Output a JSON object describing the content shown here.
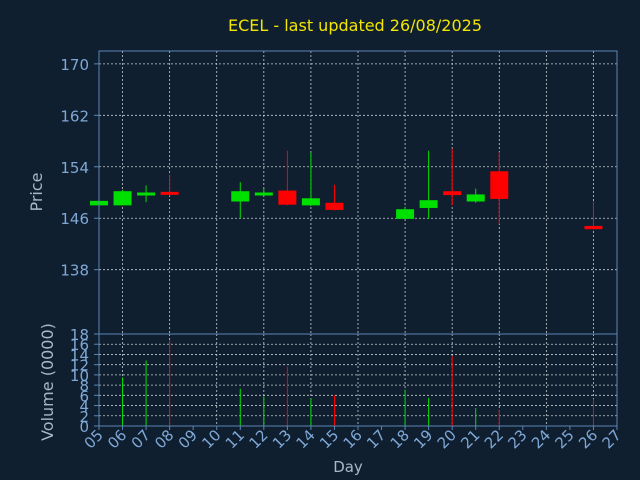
{
  "colors": {
    "background": "#0f1f30",
    "axis": "#5c86b4",
    "grid": "#c8ccd0",
    "tick_text": "#7fa8d6",
    "title": "#f2e600",
    "label": "#aab8c6",
    "up": "#00e000",
    "down": "#ff0000"
  },
  "chart_data": [
    {
      "type": "candlestick",
      "title": "ECEL - last updated 26/08/2025",
      "ylabel": "Price",
      "ylim": [
        128,
        172
      ],
      "yticks": [
        "138",
        "146",
        "154",
        "162",
        "170"
      ],
      "grid": true,
      "days": [
        "05",
        "06",
        "07",
        "08",
        "09",
        "10",
        "11",
        "12",
        "13",
        "14",
        "15",
        "16",
        "17",
        "18",
        "19",
        "20",
        "21",
        "22",
        "23",
        "24",
        "25",
        "26",
        "27"
      ],
      "candles": [
        {
          "day": "05",
          "open": 148.0,
          "close": 148.7,
          "high": 148.8,
          "low": 148.0
        },
        {
          "day": "06",
          "open": 148.0,
          "close": 150.2,
          "high": 150.4,
          "low": 148.0
        },
        {
          "day": "07",
          "open": 149.8,
          "close": 150.0,
          "high": 151.1,
          "low": 148.5
        },
        {
          "day": "08",
          "open": 150.1,
          "close": 149.7,
          "high": 152.8,
          "low": 149.5
        },
        {
          "day": "11",
          "open": 148.6,
          "close": 150.2,
          "high": 151.6,
          "low": 146.0
        },
        {
          "day": "12",
          "open": 149.8,
          "close": 150.0,
          "high": 150.6,
          "low": 149.6
        },
        {
          "day": "13",
          "open": 150.3,
          "close": 148.1,
          "high": 156.5,
          "low": 148.0
        },
        {
          "day": "14",
          "open": 148.0,
          "close": 149.1,
          "high": 156.2,
          "low": 147.9
        },
        {
          "day": "15",
          "open": 148.4,
          "close": 147.3,
          "high": 151.2,
          "low": 147.2
        },
        {
          "day": "18",
          "open": 145.9,
          "close": 147.4,
          "high": 147.8,
          "low": 145.9
        },
        {
          "day": "19",
          "open": 147.6,
          "close": 148.8,
          "high": 156.5,
          "low": 145.9
        },
        {
          "day": "20",
          "open": 150.2,
          "close": 149.6,
          "high": 156.8,
          "low": 148.0
        },
        {
          "day": "21",
          "open": 148.6,
          "close": 149.7,
          "high": 150.6,
          "low": 148.4
        },
        {
          "day": "22",
          "open": 153.3,
          "close": 149.0,
          "high": 156.3,
          "low": 145.1
        },
        {
          "day": "26",
          "open": 144.8,
          "close": 144.3,
          "high": 148.6,
          "low": 144.2
        }
      ]
    },
    {
      "type": "bar",
      "ylabel": "Volume (0000)",
      "xlabel": "Day",
      "ylim": [
        0,
        18
      ],
      "yticks": [
        "0",
        "2",
        "4",
        "6",
        "8",
        "10",
        "12",
        "14",
        "16",
        "18"
      ],
      "grid": true,
      "bars": [
        {
          "day": "06",
          "value": 9.5,
          "dir": "up"
        },
        {
          "day": "07",
          "value": 12.8,
          "dir": "up"
        },
        {
          "day": "08",
          "value": 16.8,
          "dir": "down"
        },
        {
          "day": "11",
          "value": 7.3,
          "dir": "up"
        },
        {
          "day": "12",
          "value": 5.8,
          "dir": "up"
        },
        {
          "day": "13",
          "value": 11.6,
          "dir": "down"
        },
        {
          "day": "14",
          "value": 5.4,
          "dir": "up"
        },
        {
          "day": "15",
          "value": 6.0,
          "dir": "down"
        },
        {
          "day": "18",
          "value": 7.1,
          "dir": "up"
        },
        {
          "day": "19",
          "value": 5.5,
          "dir": "up"
        },
        {
          "day": "20",
          "value": 13.7,
          "dir": "down"
        },
        {
          "day": "21",
          "value": 3.5,
          "dir": "up"
        },
        {
          "day": "22",
          "value": 3.2,
          "dir": "down"
        },
        {
          "day": "26",
          "value": 5.3,
          "dir": "down"
        }
      ]
    }
  ]
}
